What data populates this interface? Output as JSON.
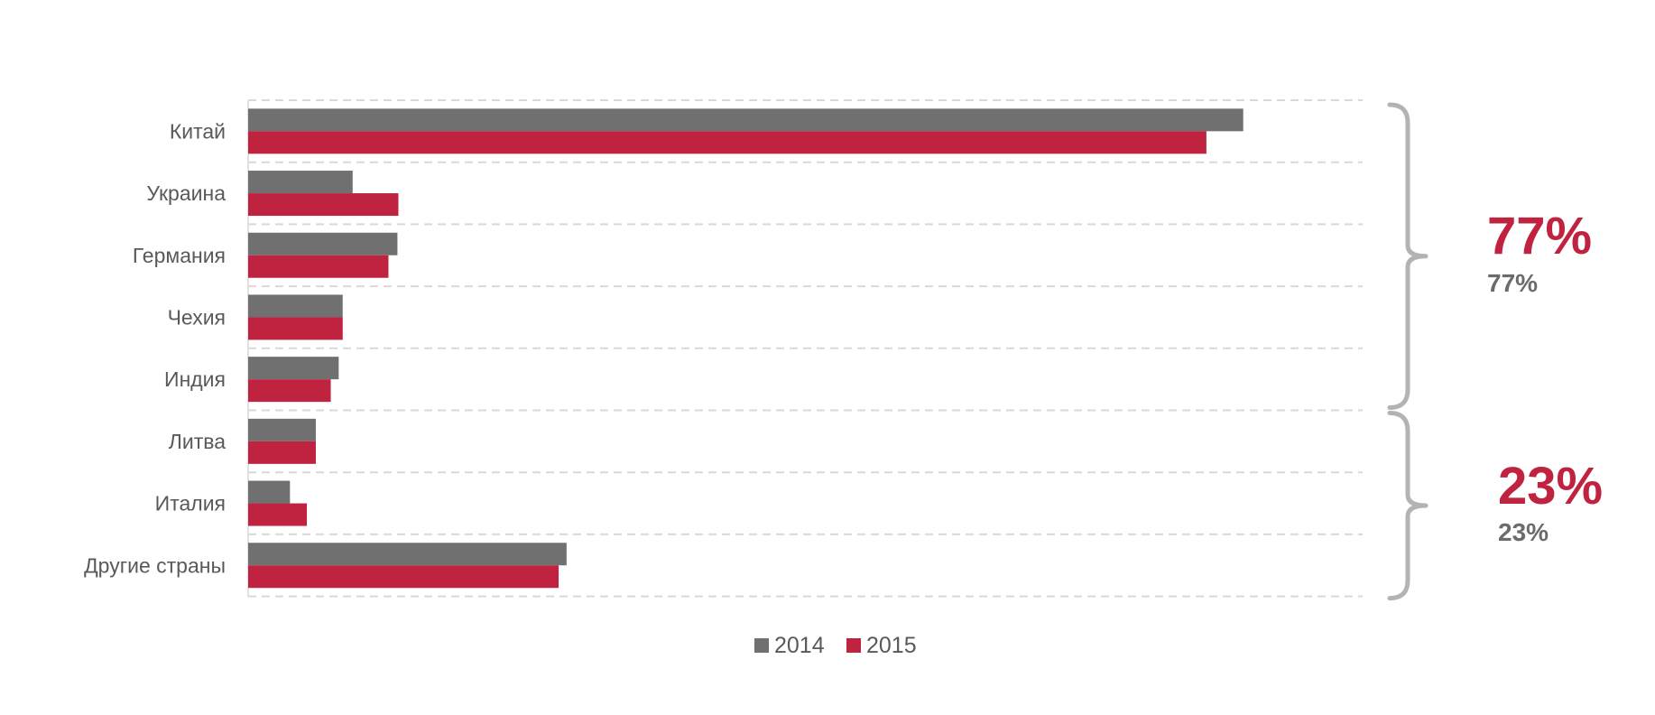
{
  "chart_data": {
    "type": "bar",
    "orientation": "horizontal",
    "categories": [
      "Китай",
      "Украина",
      "Германия",
      "Чехия",
      "Индия",
      "Литва",
      "Италия",
      "Другие страны"
    ],
    "series": [
      {
        "name": "2014",
        "color": "#707070",
        "values": [
          100,
          10.5,
          15.0,
          9.5,
          9.1,
          6.8,
          4.2,
          32.0
        ]
      },
      {
        "name": "2015",
        "color": "#C0233F",
        "values": [
          96.3,
          15.1,
          14.1,
          9.5,
          8.3,
          6.8,
          5.9,
          31.2
        ]
      }
    ],
    "xlim": [
      0,
      112
    ],
    "grid": true,
    "legend_position": "bottom",
    "groups": [
      {
        "categories": [
          "Китай",
          "Украина",
          "Германия",
          "Чехия",
          "Индия"
        ],
        "big_label": "77%",
        "big_color": "#C0233F",
        "small_label": "77%",
        "small_color": "#6B6B6B"
      },
      {
        "categories": [
          "Литва",
          "Италия",
          "Другие страны"
        ],
        "big_label": "23%",
        "big_color": "#C0233F",
        "small_label": "23%",
        "small_color": "#6B6B6B"
      }
    ],
    "bracket_color": "#B3B3B3"
  }
}
